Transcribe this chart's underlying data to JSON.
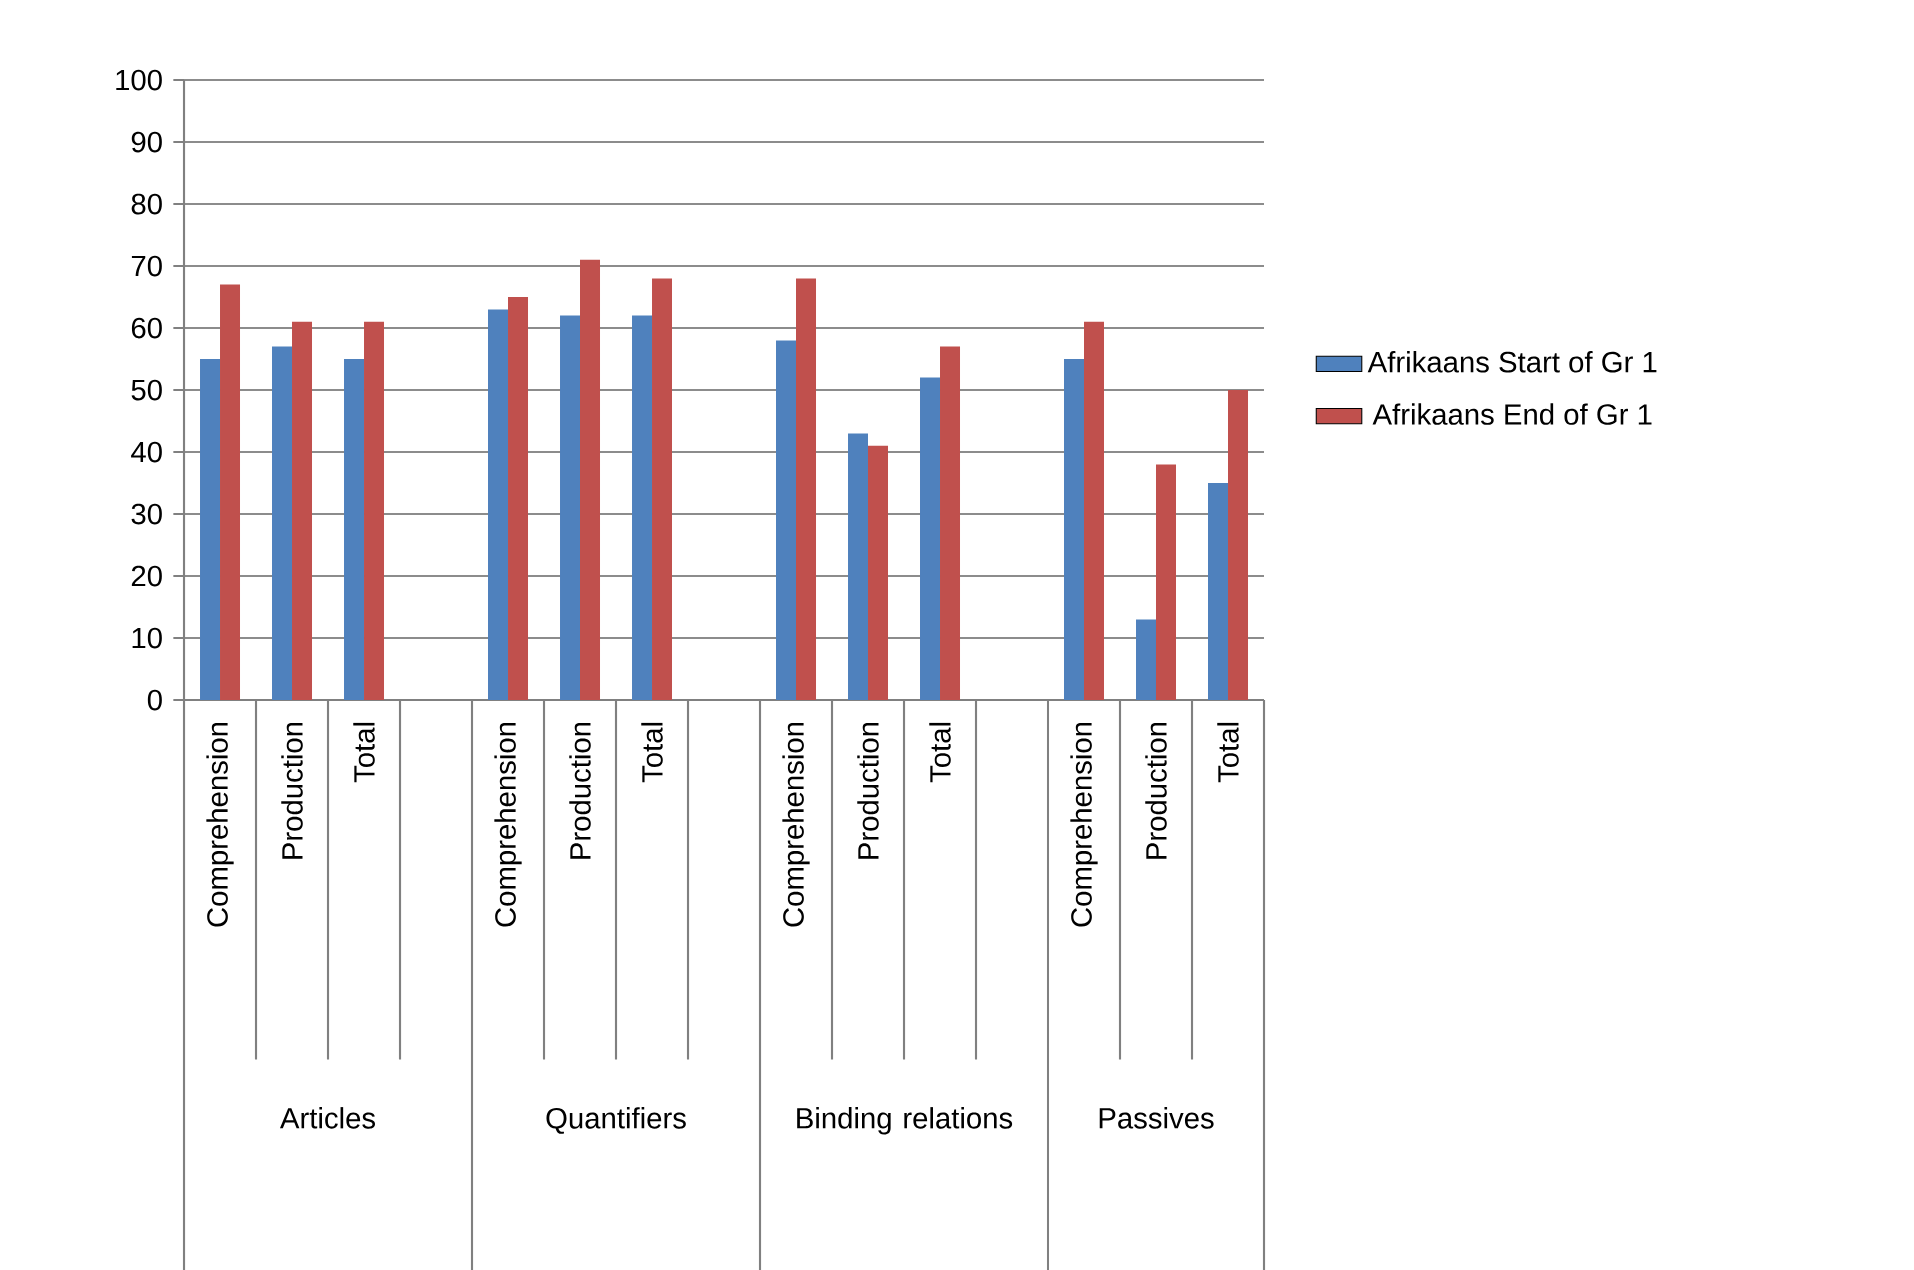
{
  "chart_data": {
    "type": "bar",
    "categories": [
      "Comprehension",
      "Production",
      "Total",
      null,
      "Comprehension",
      "Production",
      "Total",
      null,
      "Comprehension",
      "Production",
      "Total",
      null,
      "Comprehension",
      "Production",
      "Total"
    ],
    "series": [
      {
        "name": "Afrikaans Start of Gr 1",
        "color": "#4f81bd",
        "values": [
          55,
          57,
          55,
          null,
          63,
          62,
          62,
          null,
          58,
          43,
          52,
          null,
          55,
          13,
          35
        ]
      },
      {
        "name": "Afrikaans End of Gr 1",
        "color": "#c0504d",
        "values": [
          67,
          61,
          61,
          null,
          65,
          71,
          68,
          null,
          68,
          41,
          57,
          null,
          61,
          38,
          50
        ]
      }
    ],
    "annotations": [
      "Articles",
      "Quantifiers",
      "Binding relations",
      "Passives"
    ],
    "ylim": [
      0,
      100
    ],
    "yticks": [
      0,
      10,
      20,
      30,
      40,
      50,
      60,
      70,
      80,
      90,
      100
    ],
    "grid": "y",
    "legend": "right"
  }
}
